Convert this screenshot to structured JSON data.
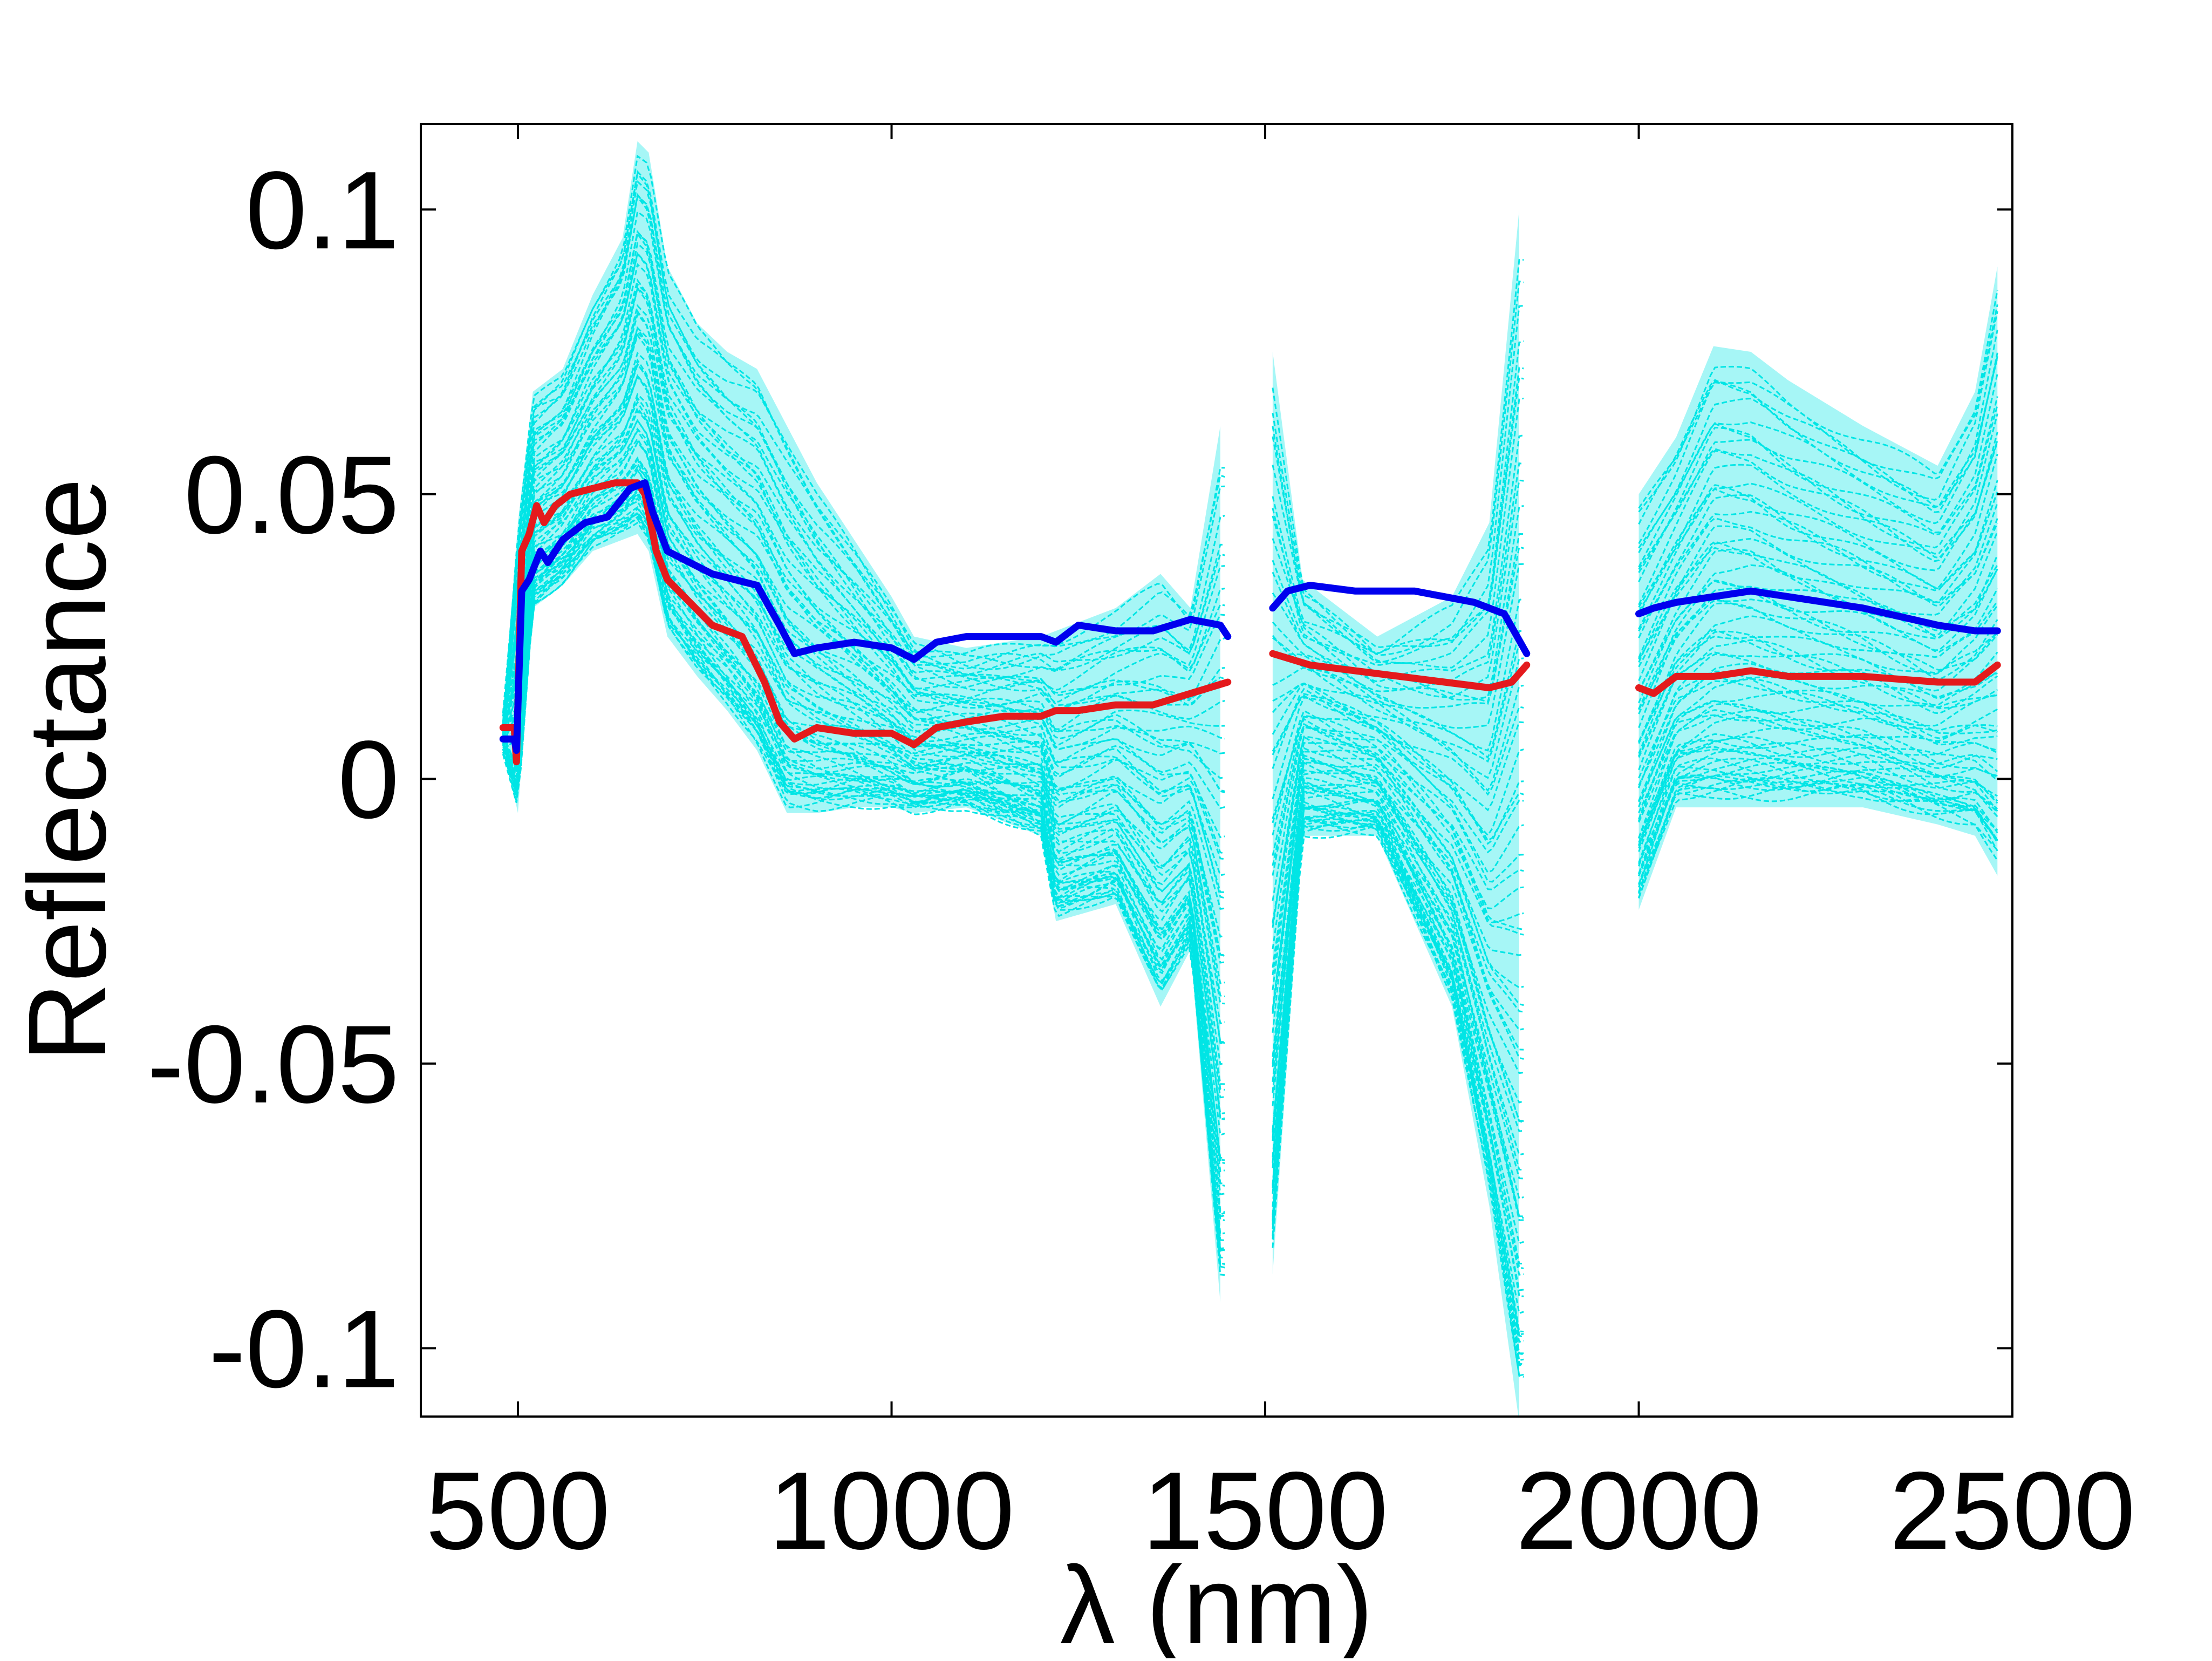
{
  "chart_data": {
    "type": "line",
    "title": "",
    "xlabel": "λ (nm)",
    "ylabel": "Reflectance",
    "xlim": [
      370,
      2500
    ],
    "ylim": [
      -0.112,
      0.115
    ],
    "xticks": [
      500,
      1000,
      1500,
      2000,
      2500
    ],
    "yticks": [
      -0.1,
      -0.05,
      0,
      0.05,
      0.1
    ],
    "xtick_labels": [
      "500",
      "1000",
      "1500",
      "2000",
      "2500"
    ],
    "ytick_labels": [
      "-0.1",
      "-0.05",
      "0",
      "0.05",
      "0.1"
    ],
    "grid": false,
    "legend": "none",
    "segments": [
      [
        480,
        1450
      ],
      [
        1510,
        1850
      ],
      [
        2000,
        2480
      ]
    ],
    "envelope": {
      "color": "#00e5e5",
      "upper": [
        [
          480,
          0.01
        ],
        [
          500,
          0.045
        ],
        [
          520,
          0.068
        ],
        [
          560,
          0.072
        ],
        [
          600,
          0.085
        ],
        [
          640,
          0.095
        ],
        [
          660,
          0.112
        ],
        [
          675,
          0.11
        ],
        [
          700,
          0.09
        ],
        [
          740,
          0.08
        ],
        [
          780,
          0.075
        ],
        [
          820,
          0.072
        ],
        [
          860,
          0.062
        ],
        [
          900,
          0.052
        ],
        [
          950,
          0.042
        ],
        [
          1000,
          0.032
        ],
        [
          1030,
          0.025
        ],
        [
          1100,
          0.023
        ],
        [
          1200,
          0.025
        ],
        [
          1300,
          0.03
        ],
        [
          1360,
          0.036
        ],
        [
          1400,
          0.03
        ],
        [
          1440,
          0.062
        ],
        [
          1510,
          0.075
        ],
        [
          1550,
          0.035
        ],
        [
          1650,
          0.025
        ],
        [
          1750,
          0.032
        ],
        [
          1800,
          0.045
        ],
        [
          1840,
          0.1
        ],
        [
          2000,
          0.05
        ],
        [
          2050,
          0.06
        ],
        [
          2100,
          0.076
        ],
        [
          2150,
          0.075
        ],
        [
          2200,
          0.07
        ],
        [
          2300,
          0.062
        ],
        [
          2400,
          0.055
        ],
        [
          2450,
          0.068
        ],
        [
          2480,
          0.09
        ]
      ],
      "lower": [
        [
          480,
          0.006
        ],
        [
          500,
          -0.006
        ],
        [
          520,
          0.03
        ],
        [
          560,
          0.034
        ],
        [
          600,
          0.04
        ],
        [
          640,
          0.042
        ],
        [
          660,
          0.043
        ],
        [
          675,
          0.04
        ],
        [
          700,
          0.025
        ],
        [
          740,
          0.018
        ],
        [
          780,
          0.012
        ],
        [
          820,
          0.005
        ],
        [
          860,
          -0.006
        ],
        [
          900,
          -0.006
        ],
        [
          950,
          -0.005
        ],
        [
          1000,
          -0.005
        ],
        [
          1030,
          -0.006
        ],
        [
          1100,
          -0.005
        ],
        [
          1200,
          -0.01
        ],
        [
          1220,
          -0.025
        ],
        [
          1300,
          -0.022
        ],
        [
          1360,
          -0.04
        ],
        [
          1400,
          -0.03
        ],
        [
          1440,
          -0.092
        ],
        [
          1510,
          -0.087
        ],
        [
          1550,
          -0.01
        ],
        [
          1650,
          -0.01
        ],
        [
          1750,
          -0.04
        ],
        [
          1800,
          -0.075
        ],
        [
          1840,
          -0.113
        ],
        [
          2000,
          -0.023
        ],
        [
          2050,
          -0.005
        ],
        [
          2100,
          -0.005
        ],
        [
          2200,
          -0.005
        ],
        [
          2300,
          -0.005
        ],
        [
          2400,
          -0.008
        ],
        [
          2450,
          -0.01
        ],
        [
          2480,
          -0.017
        ]
      ]
    },
    "series": [
      {
        "color": "#e41a1c",
        "segments": [
          [
            [
              480,
              0.009
            ],
            [
              495,
              0.009
            ],
            [
              498,
              0.003
            ],
            [
              505,
              0.04
            ],
            [
              515,
              0.043
            ],
            [
              525,
              0.048
            ],
            [
              535,
              0.045
            ],
            [
              550,
              0.048
            ],
            [
              570,
              0.05
            ],
            [
              600,
              0.051
            ],
            [
              630,
              0.052
            ],
            [
              660,
              0.052
            ],
            [
              670,
              0.05
            ],
            [
              685,
              0.04
            ],
            [
              700,
              0.035
            ],
            [
              730,
              0.031
            ],
            [
              760,
              0.027
            ],
            [
              800,
              0.025
            ],
            [
              830,
              0.017
            ],
            [
              850,
              0.01
            ],
            [
              870,
              0.007
            ],
            [
              900,
              0.009
            ],
            [
              950,
              0.008
            ],
            [
              1000,
              0.008
            ],
            [
              1030,
              0.006
            ],
            [
              1060,
              0.009
            ],
            [
              1100,
              0.01
            ],
            [
              1150,
              0.011
            ],
            [
              1200,
              0.011
            ],
            [
              1220,
              0.012
            ],
            [
              1250,
              0.012
            ],
            [
              1300,
              0.013
            ],
            [
              1350,
              0.013
            ],
            [
              1400,
              0.015
            ],
            [
              1450,
              0.017
            ]
          ],
          [
            [
              1510,
              0.022
            ],
            [
              1560,
              0.02
            ],
            [
              1620,
              0.019
            ],
            [
              1680,
              0.018
            ],
            [
              1740,
              0.017
            ],
            [
              1800,
              0.016
            ],
            [
              1830,
              0.017
            ],
            [
              1850,
              0.02
            ]
          ],
          [
            [
              2000,
              0.016
            ],
            [
              2020,
              0.015
            ],
            [
              2050,
              0.018
            ],
            [
              2100,
              0.018
            ],
            [
              2150,
              0.019
            ],
            [
              2200,
              0.018
            ],
            [
              2300,
              0.018
            ],
            [
              2400,
              0.017
            ],
            [
              2450,
              0.017
            ],
            [
              2480,
              0.02
            ]
          ]
        ]
      },
      {
        "color": "#0000ee",
        "segments": [
          [
            [
              480,
              0.007
            ],
            [
              495,
              0.007
            ],
            [
              498,
              0.005
            ],
            [
              505,
              0.033
            ],
            [
              515,
              0.035
            ],
            [
              530,
              0.04
            ],
            [
              540,
              0.038
            ],
            [
              560,
              0.042
            ],
            [
              590,
              0.045
            ],
            [
              620,
              0.046
            ],
            [
              650,
              0.051
            ],
            [
              670,
              0.052
            ],
            [
              680,
              0.047
            ],
            [
              700,
              0.04
            ],
            [
              730,
              0.038
            ],
            [
              760,
              0.036
            ],
            [
              790,
              0.035
            ],
            [
              820,
              0.034
            ],
            [
              850,
              0.027
            ],
            [
              870,
              0.022
            ],
            [
              900,
              0.023
            ],
            [
              950,
              0.024
            ],
            [
              1000,
              0.023
            ],
            [
              1030,
              0.021
            ],
            [
              1060,
              0.024
            ],
            [
              1100,
              0.025
            ],
            [
              1150,
              0.025
            ],
            [
              1200,
              0.025
            ],
            [
              1220,
              0.024
            ],
            [
              1250,
              0.027
            ],
            [
              1300,
              0.026
            ],
            [
              1350,
              0.026
            ],
            [
              1400,
              0.028
            ],
            [
              1440,
              0.027
            ],
            [
              1450,
              0.025
            ]
          ],
          [
            [
              1510,
              0.03
            ],
            [
              1530,
              0.033
            ],
            [
              1560,
              0.034
            ],
            [
              1620,
              0.033
            ],
            [
              1700,
              0.033
            ],
            [
              1780,
              0.031
            ],
            [
              1820,
              0.029
            ],
            [
              1850,
              0.022
            ]
          ],
          [
            [
              2000,
              0.029
            ],
            [
              2020,
              0.03
            ],
            [
              2050,
              0.031
            ],
            [
              2100,
              0.032
            ],
            [
              2150,
              0.033
            ],
            [
              2200,
              0.032
            ],
            [
              2300,
              0.03
            ],
            [
              2400,
              0.027
            ],
            [
              2450,
              0.026
            ],
            [
              2480,
              0.026
            ]
          ]
        ]
      }
    ]
  }
}
